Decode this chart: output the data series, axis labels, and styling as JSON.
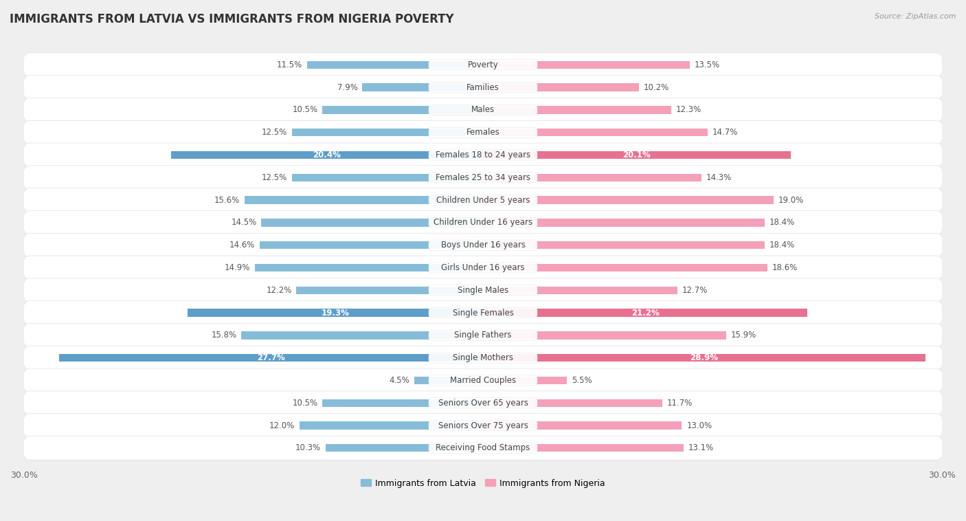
{
  "title": "IMMIGRANTS FROM LATVIA VS IMMIGRANTS FROM NIGERIA POVERTY",
  "source": "Source: ZipAtlas.com",
  "categories": [
    "Poverty",
    "Families",
    "Males",
    "Females",
    "Females 18 to 24 years",
    "Females 25 to 34 years",
    "Children Under 5 years",
    "Children Under 16 years",
    "Boys Under 16 years",
    "Girls Under 16 years",
    "Single Males",
    "Single Females",
    "Single Fathers",
    "Single Mothers",
    "Married Couples",
    "Seniors Over 65 years",
    "Seniors Over 75 years",
    "Receiving Food Stamps"
  ],
  "latvia_values": [
    11.5,
    7.9,
    10.5,
    12.5,
    20.4,
    12.5,
    15.6,
    14.5,
    14.6,
    14.9,
    12.2,
    19.3,
    15.8,
    27.7,
    4.5,
    10.5,
    12.0,
    10.3
  ],
  "nigeria_values": [
    13.5,
    10.2,
    12.3,
    14.7,
    20.1,
    14.3,
    19.0,
    18.4,
    18.4,
    18.6,
    12.7,
    21.2,
    15.9,
    28.9,
    5.5,
    11.7,
    13.0,
    13.1
  ],
  "latvia_color": "#87bcd9",
  "nigeria_color": "#f4a0b8",
  "latvia_highlight_color": "#5e9ec8",
  "nigeria_highlight_color": "#e87090",
  "highlight_rows": [
    4,
    11,
    13
  ],
  "background_color": "#efefef",
  "row_bg_color": "#fafafa",
  "row_alt_bg_color": "#f0f0f0",
  "xlim": 30.0,
  "legend_latvia": "Immigrants from Latvia",
  "legend_nigeria": "Immigrants from Nigeria",
  "label_fontsize": 8.5,
  "title_fontsize": 12,
  "value_fontsize": 8.5,
  "axis_label_fontsize": 9
}
